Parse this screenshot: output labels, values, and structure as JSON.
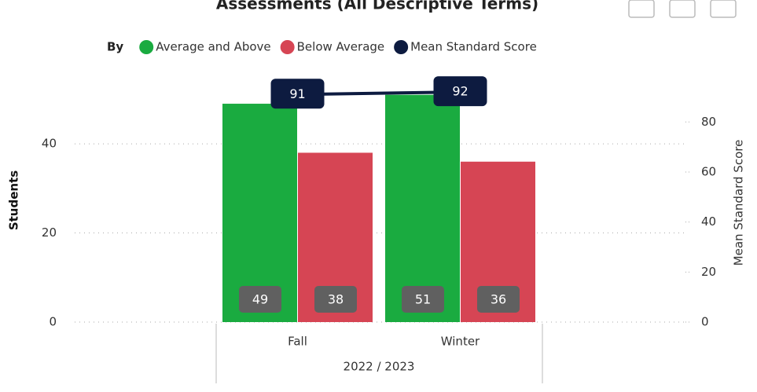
{
  "chart_data": {
    "type": "combo",
    "title": "Assessments (All Descriptive Terms)",
    "legend_title": "By",
    "categories": [
      "Fall",
      "Winter"
    ],
    "category_group": "2022 / 2023",
    "y_label": "Students",
    "y2_label": "Mean Standard Score",
    "ylim": [
      0,
      55
    ],
    "yticks": [
      0,
      20,
      40
    ],
    "y2lim": [
      0,
      98
    ],
    "y2ticks": [
      0,
      20,
      40,
      60,
      80
    ],
    "grid": true,
    "series": [
      {
        "name": "Average and Above",
        "color": "#1aab40",
        "kind": "bar",
        "values": [
          49,
          51
        ]
      },
      {
        "name": "Below Average",
        "color": "#d64554",
        "kind": "bar",
        "values": [
          38,
          36
        ]
      },
      {
        "name": "Mean Standard Score",
        "color": "#0d1b40",
        "kind": "line",
        "axis": "y2",
        "values": [
          91,
          92
        ]
      }
    ]
  }
}
